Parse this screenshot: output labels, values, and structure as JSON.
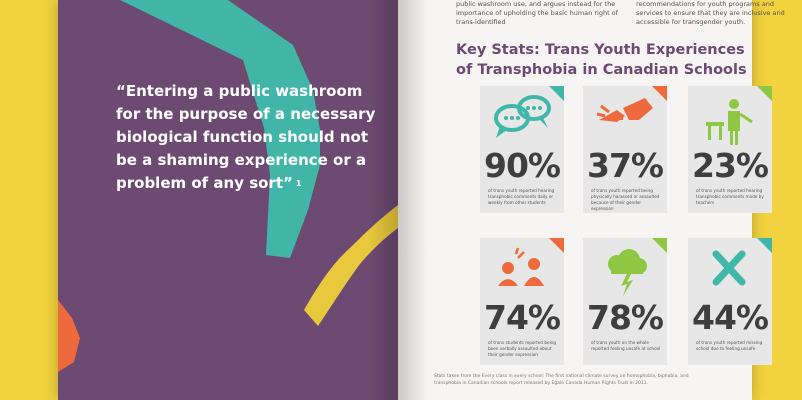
{
  "left_page": {
    "quote": "“Entering a public washroom for the purpose of a necessary biological function should not be a shaming experience or a problem of any sort”",
    "quote_ref": "1"
  },
  "top_text": {
    "col1": "public washroom use, and argues instead for the importance of upholding the basic human right of trans-identified",
    "col2": "recommendations for youth programs and services to ensure that they are inclusive and accessible for transgender youth."
  },
  "heading": {
    "line1": "Key Stats: Trans Youth Experiences",
    "line2": "of Transphobia in Canadian Schools"
  },
  "cards": [
    {
      "pct": "90%",
      "desc": "of trans youth reported hearing transphobic comments daily or weekly from other students",
      "icon": "speech-bubbles-icon",
      "corner": "#40b7a9"
    },
    {
      "pct": "37%",
      "desc": "of trans youth reported being physically harassed or assaulted because of their gender expression",
      "icon": "grabbing-hand-icon",
      "corner": "#ee6a3c"
    },
    {
      "pct": "23%",
      "desc": "of trans youth reported hearing transphobic comments made by teachers",
      "icon": "teacher-at-desk-icon",
      "corner": "#8ec742"
    },
    {
      "pct": "74%",
      "desc": "of trans students reported being been verbally assaulted about their gender expression",
      "icon": "shouting-people-icon",
      "corner": "#ee6a3c"
    },
    {
      "pct": "78%",
      "desc": "of trans youth on the whole reported feeling unsafe at school",
      "icon": "storm-cloud-icon",
      "corner": "#8ec742"
    },
    {
      "pct": "44%",
      "desc": "of trans youth reported missing school due to feeling unsafe",
      "icon": "x-mark-icon",
      "corner": "#40b7a9"
    }
  ],
  "footnote": {
    "prefix": "Stats taken from the Every class in every school: The first national climate survey on homophobia, biphobia, and",
    "line2": "transphobia in Canadian schools report released by Egale Canada Human Rights Trust in 2011."
  }
}
